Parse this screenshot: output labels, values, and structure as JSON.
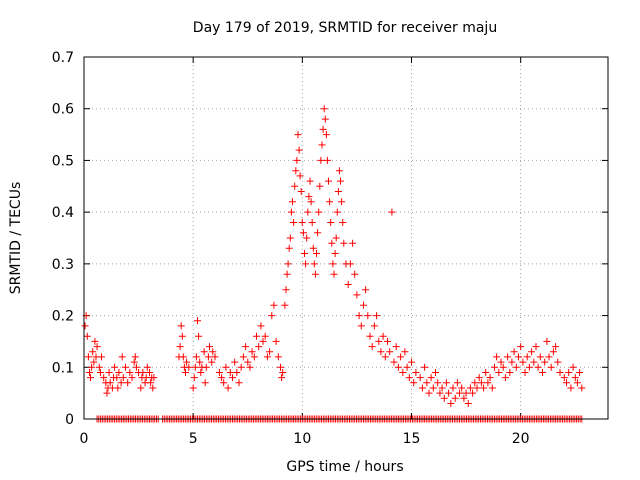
{
  "chart_data": {
    "type": "scatter",
    "title": "Day 179 of 2019, SRMTID for receiver maju",
    "xlabel": "GPS time / hours",
    "ylabel": "SRMTID / TECUs",
    "xlim": [
      0,
      24
    ],
    "ylim": [
      0,
      0.7
    ],
    "x_ticks": [
      0,
      5,
      10,
      15,
      20
    ],
    "y_ticks": [
      0,
      0.1,
      0.2,
      0.3,
      0.4,
      0.5,
      0.6,
      0.7
    ],
    "y_tick_labels": [
      "0",
      "0.1",
      "0.2",
      "0.3",
      "0.4",
      "0.5",
      "0.6",
      "0.7"
    ],
    "grid": true,
    "marker": "plus",
    "colors": {
      "series": "#ff0000",
      "grid": "#a0a0a0",
      "axis": "#000000",
      "background": "#ffffff"
    },
    "series": [
      {
        "name": "SRMTID",
        "points": [
          [
            0.05,
            0.18
          ],
          [
            0.1,
            0.2
          ],
          [
            0.15,
            0.16
          ],
          [
            0.2,
            0.12
          ],
          [
            0.25,
            0.09
          ],
          [
            0.3,
            0.08
          ],
          [
            0.35,
            0.1
          ],
          [
            0.4,
            0.13
          ],
          [
            0.45,
            0.11
          ],
          [
            0.5,
            0.15
          ],
          [
            0.55,
            0.12
          ],
          [
            0.6,
            0.14
          ],
          [
            0.7,
            0.1
          ],
          [
            0.75,
            0.09
          ],
          [
            0.8,
            0.12
          ],
          [
            0.9,
            0.08
          ],
          [
            1.0,
            0.07
          ],
          [
            1.05,
            0.05
          ],
          [
            1.1,
            0.06
          ],
          [
            1.15,
            0.09
          ],
          [
            1.2,
            0.07
          ],
          [
            1.3,
            0.06
          ],
          [
            1.35,
            0.08
          ],
          [
            1.4,
            0.1
          ],
          [
            1.5,
            0.08
          ],
          [
            1.55,
            0.06
          ],
          [
            1.6,
            0.09
          ],
          [
            1.7,
            0.07
          ],
          [
            1.75,
            0.12
          ],
          [
            1.8,
            0.08
          ],
          [
            1.9,
            0.1
          ],
          [
            2.0,
            0.07
          ],
          [
            2.1,
            0.09
          ],
          [
            2.2,
            0.08
          ],
          [
            2.3,
            0.11
          ],
          [
            2.35,
            0.12
          ],
          [
            2.4,
            0.1
          ],
          [
            2.5,
            0.09
          ],
          [
            2.6,
            0.06
          ],
          [
            2.65,
            0.08
          ],
          [
            2.7,
            0.09
          ],
          [
            2.8,
            0.07
          ],
          [
            2.85,
            0.08
          ],
          [
            2.9,
            0.1
          ],
          [
            3.0,
            0.09
          ],
          [
            3.05,
            0.07
          ],
          [
            3.1,
            0.08
          ],
          [
            3.15,
            0.06
          ],
          [
            3.2,
            0.08
          ],
          [
            4.35,
            0.12
          ],
          [
            4.4,
            0.14
          ],
          [
            4.45,
            0.18
          ],
          [
            4.5,
            0.16
          ],
          [
            4.55,
            0.12
          ],
          [
            4.6,
            0.1
          ],
          [
            4.65,
            0.09
          ],
          [
            4.7,
            0.11
          ],
          [
            4.8,
            0.1
          ],
          [
            5.0,
            0.06
          ],
          [
            5.05,
            0.08
          ],
          [
            5.1,
            0.1
          ],
          [
            5.15,
            0.12
          ],
          [
            5.2,
            0.19
          ],
          [
            5.25,
            0.16
          ],
          [
            5.3,
            0.11
          ],
          [
            5.35,
            0.09
          ],
          [
            5.4,
            0.1
          ],
          [
            5.5,
            0.13
          ],
          [
            5.55,
            0.07
          ],
          [
            5.6,
            0.1
          ],
          [
            5.7,
            0.12
          ],
          [
            5.75,
            0.14
          ],
          [
            5.85,
            0.11
          ],
          [
            5.9,
            0.13
          ],
          [
            6.0,
            0.12
          ],
          [
            6.2,
            0.09
          ],
          [
            6.3,
            0.08
          ],
          [
            6.4,
            0.07
          ],
          [
            6.5,
            0.1
          ],
          [
            6.6,
            0.06
          ],
          [
            6.7,
            0.09
          ],
          [
            6.8,
            0.08
          ],
          [
            6.9,
            0.11
          ],
          [
            7.0,
            0.09
          ],
          [
            7.1,
            0.07
          ],
          [
            7.2,
            0.1
          ],
          [
            7.3,
            0.12
          ],
          [
            7.4,
            0.14
          ],
          [
            7.5,
            0.11
          ],
          [
            7.6,
            0.1
          ],
          [
            7.7,
            0.13
          ],
          [
            7.8,
            0.12
          ],
          [
            7.9,
            0.16
          ],
          [
            8.0,
            0.14
          ],
          [
            8.1,
            0.18
          ],
          [
            8.2,
            0.15
          ],
          [
            8.3,
            0.16
          ],
          [
            8.4,
            0.12
          ],
          [
            8.5,
            0.13
          ],
          [
            8.6,
            0.2
          ],
          [
            8.7,
            0.22
          ],
          [
            8.8,
            0.15
          ],
          [
            8.9,
            0.12
          ],
          [
            9.0,
            0.1
          ],
          [
            9.05,
            0.08
          ],
          [
            9.1,
            0.09
          ],
          [
            9.2,
            0.22
          ],
          [
            9.25,
            0.25
          ],
          [
            9.3,
            0.28
          ],
          [
            9.35,
            0.3
          ],
          [
            9.4,
            0.33
          ],
          [
            9.45,
            0.35
          ],
          [
            9.5,
            0.4
          ],
          [
            9.55,
            0.42
          ],
          [
            9.6,
            0.38
          ],
          [
            9.65,
            0.45
          ],
          [
            9.7,
            0.48
          ],
          [
            9.75,
            0.5
          ],
          [
            9.8,
            0.55
          ],
          [
            9.85,
            0.52
          ],
          [
            9.9,
            0.47
          ],
          [
            9.95,
            0.44
          ],
          [
            10.0,
            0.38
          ],
          [
            10.05,
            0.36
          ],
          [
            10.1,
            0.32
          ],
          [
            10.15,
            0.3
          ],
          [
            10.2,
            0.35
          ],
          [
            10.25,
            0.4
          ],
          [
            10.3,
            0.43
          ],
          [
            10.35,
            0.46
          ],
          [
            10.4,
            0.42
          ],
          [
            10.45,
            0.38
          ],
          [
            10.5,
            0.33
          ],
          [
            10.55,
            0.3
          ],
          [
            10.6,
            0.28
          ],
          [
            10.65,
            0.32
          ],
          [
            10.7,
            0.36
          ],
          [
            10.75,
            0.4
          ],
          [
            10.8,
            0.45
          ],
          [
            10.85,
            0.5
          ],
          [
            10.9,
            0.53
          ],
          [
            10.95,
            0.56
          ],
          [
            11.0,
            0.6
          ],
          [
            11.05,
            0.58
          ],
          [
            11.1,
            0.55
          ],
          [
            11.15,
            0.5
          ],
          [
            11.2,
            0.46
          ],
          [
            11.25,
            0.42
          ],
          [
            11.3,
            0.38
          ],
          [
            11.35,
            0.34
          ],
          [
            11.4,
            0.3
          ],
          [
            11.45,
            0.28
          ],
          [
            11.5,
            0.32
          ],
          [
            11.55,
            0.35
          ],
          [
            11.6,
            0.4
          ],
          [
            11.65,
            0.44
          ],
          [
            11.7,
            0.48
          ],
          [
            11.75,
            0.46
          ],
          [
            11.8,
            0.42
          ],
          [
            11.85,
            0.38
          ],
          [
            11.9,
            0.34
          ],
          [
            12.0,
            0.3
          ],
          [
            12.1,
            0.26
          ],
          [
            12.2,
            0.3
          ],
          [
            12.3,
            0.34
          ],
          [
            12.4,
            0.28
          ],
          [
            12.5,
            0.24
          ],
          [
            12.6,
            0.2
          ],
          [
            12.7,
            0.18
          ],
          [
            12.8,
            0.22
          ],
          [
            12.9,
            0.25
          ],
          [
            13.0,
            0.2
          ],
          [
            13.1,
            0.16
          ],
          [
            13.2,
            0.14
          ],
          [
            13.3,
            0.18
          ],
          [
            13.4,
            0.2
          ],
          [
            13.5,
            0.15
          ],
          [
            13.6,
            0.13
          ],
          [
            13.7,
            0.16
          ],
          [
            13.8,
            0.12
          ],
          [
            13.9,
            0.15
          ],
          [
            14.0,
            0.13
          ],
          [
            14.1,
            0.4
          ],
          [
            14.2,
            0.11
          ],
          [
            14.3,
            0.14
          ],
          [
            14.4,
            0.1
          ],
          [
            14.5,
            0.12
          ],
          [
            14.6,
            0.09
          ],
          [
            14.7,
            0.13
          ],
          [
            14.8,
            0.1
          ],
          [
            14.9,
            0.08
          ],
          [
            15.0,
            0.11
          ],
          [
            15.1,
            0.07
          ],
          [
            15.2,
            0.09
          ],
          [
            15.4,
            0.08
          ],
          [
            15.5,
            0.06
          ],
          [
            15.6,
            0.1
          ],
          [
            15.7,
            0.07
          ],
          [
            15.8,
            0.05
          ],
          [
            15.9,
            0.08
          ],
          [
            16.0,
            0.06
          ],
          [
            16.1,
            0.09
          ],
          [
            16.2,
            0.07
          ],
          [
            16.3,
            0.05
          ],
          [
            16.4,
            0.06
          ],
          [
            16.5,
            0.04
          ],
          [
            16.6,
            0.07
          ],
          [
            16.7,
            0.05
          ],
          [
            16.8,
            0.03
          ],
          [
            16.9,
            0.06
          ],
          [
            17.0,
            0.04
          ],
          [
            17.1,
            0.07
          ],
          [
            17.2,
            0.05
          ],
          [
            17.3,
            0.06
          ],
          [
            17.4,
            0.04
          ],
          [
            17.5,
            0.05
          ],
          [
            17.6,
            0.03
          ],
          [
            17.7,
            0.06
          ],
          [
            17.8,
            0.05
          ],
          [
            17.9,
            0.07
          ],
          [
            18.0,
            0.06
          ],
          [
            18.1,
            0.08
          ],
          [
            18.2,
            0.07
          ],
          [
            18.3,
            0.06
          ],
          [
            18.4,
            0.09
          ],
          [
            18.5,
            0.07
          ],
          [
            18.6,
            0.08
          ],
          [
            18.7,
            0.06
          ],
          [
            18.8,
            0.1
          ],
          [
            18.9,
            0.12
          ],
          [
            19.0,
            0.09
          ],
          [
            19.1,
            0.11
          ],
          [
            19.2,
            0.1
          ],
          [
            19.3,
            0.08
          ],
          [
            19.4,
            0.12
          ],
          [
            19.5,
            0.09
          ],
          [
            19.6,
            0.11
          ],
          [
            19.7,
            0.13
          ],
          [
            19.8,
            0.1
          ],
          [
            19.9,
            0.12
          ],
          [
            20.0,
            0.14
          ],
          [
            20.1,
            0.11
          ],
          [
            20.2,
            0.09
          ],
          [
            20.3,
            0.12
          ],
          [
            20.4,
            0.1
          ],
          [
            20.5,
            0.13
          ],
          [
            20.6,
            0.11
          ],
          [
            20.7,
            0.14
          ],
          [
            20.8,
            0.1
          ],
          [
            20.9,
            0.12
          ],
          [
            21.0,
            0.09
          ],
          [
            21.1,
            0.11
          ],
          [
            21.2,
            0.15
          ],
          [
            21.3,
            0.12
          ],
          [
            21.4,
            0.1
          ],
          [
            21.5,
            0.13
          ],
          [
            21.6,
            0.14
          ],
          [
            21.7,
            0.11
          ],
          [
            21.8,
            0.09
          ],
          [
            22.0,
            0.08
          ],
          [
            22.1,
            0.07
          ],
          [
            22.2,
            0.09
          ],
          [
            22.3,
            0.06
          ],
          [
            22.4,
            0.1
          ],
          [
            22.5,
            0.08
          ],
          [
            22.6,
            0.07
          ],
          [
            22.7,
            0.09
          ],
          [
            22.8,
            0.06
          ]
        ],
        "zero_segments": [
          [
            0.6,
            3.4
          ],
          [
            3.6,
            22.8
          ]
        ]
      }
    ]
  }
}
